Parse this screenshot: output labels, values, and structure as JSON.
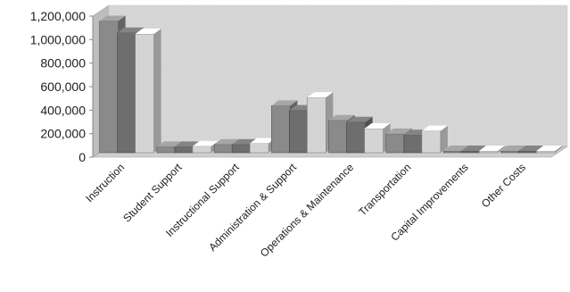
{
  "chart_data": {
    "type": "bar",
    "title": "",
    "xlabel": "",
    "ylabel": "",
    "ylim": [
      0,
      1200000
    ],
    "yticks": [
      0,
      200000,
      400000,
      600000,
      800000,
      1000000,
      1200000
    ],
    "ytick_labels": [
      "0",
      "200,000",
      "400,000",
      "600,000",
      "800,000",
      "1,000,000",
      "1,200,000"
    ],
    "style": "3d-clustered-grayscale",
    "grid": false,
    "legend": "none",
    "categories": [
      "Instruction",
      "Student Support",
      "Instructional Support",
      "Administration & Support",
      "Operations & Maintenance",
      "Transportation",
      "Capital Improvements",
      "Other Costs"
    ],
    "series": [
      {
        "values": [
          1120000,
          50000,
          70000,
          400000,
          275000,
          160000,
          5000,
          5000
        ]
      },
      {
        "values": [
          1020000,
          50000,
          70000,
          360000,
          260000,
          150000,
          5000,
          5000
        ]
      },
      {
        "values": [
          1010000,
          55000,
          80000,
          470000,
          205000,
          185000,
          5000,
          5000
        ]
      }
    ],
    "series_colors": [
      "#8a8a8a",
      "#6e6e6e",
      "#d4d4d4"
    ]
  }
}
